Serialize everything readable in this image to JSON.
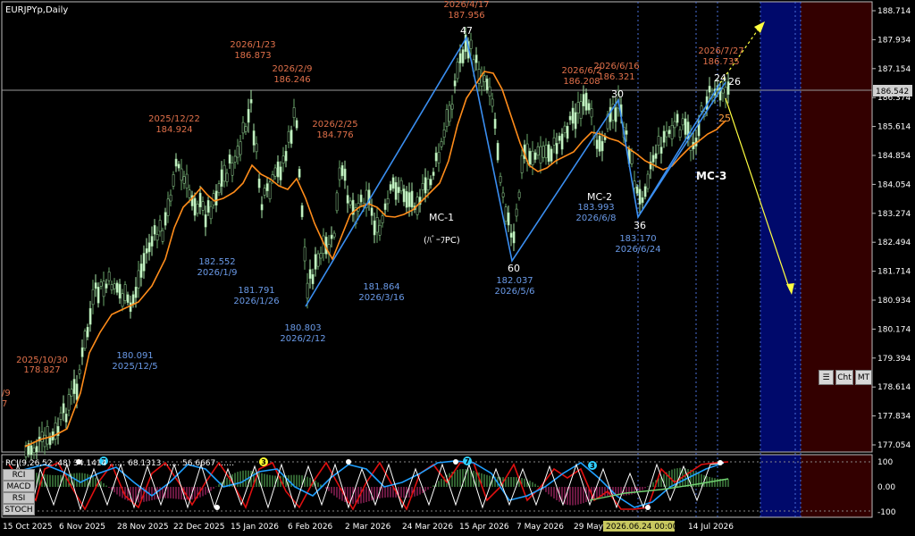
{
  "window": {
    "symbol_title": "EURJPYp,Daily",
    "current_price_label": "186.542",
    "indicator_header": "RCI(9,26,52 ,48) 34.1414 …… 68.1313 …… 56.6667 ……"
  },
  "price_axis": {
    "ticks": [
      "188.714",
      "187.934",
      "187.154",
      "186.374",
      "185.614",
      "184.854",
      "184.054",
      "183.274",
      "182.494",
      "181.714",
      "180.934",
      "180.174",
      "179.394",
      "178.614",
      "177.834",
      "177.054"
    ]
  },
  "sub_axis": {
    "ticks": [
      "100",
      "0.00",
      "-100"
    ]
  },
  "time_axis": {
    "ticks": [
      "15 Oct 2025",
      "6 Nov 2025",
      "28 Nov 2025",
      "22 Dec 2025",
      "15 Jan 2026",
      "6 Feb 2026",
      "2 Mar 2026",
      "24 Mar 2026",
      "15 Apr 2026",
      "7 May 2026",
      "29 May 2026",
      "14 Jul 2026"
    ],
    "highlight": "2026.06.24 00:00"
  },
  "annotations": {
    "orange": [
      {
        "date": "2025/10/30",
        "price": "178.827"
      },
      {
        "date": "2025/12/22",
        "price": "184.924"
      },
      {
        "date": "2026/1/23",
        "price": "186.873"
      },
      {
        "date": "2026/2/9",
        "price": "186.246"
      },
      {
        "date": "2026/2/25",
        "price": "184.776"
      },
      {
        "date": "2026/4/17",
        "price": "187.956"
      },
      {
        "date": "2026/6/2",
        "price": "186.208"
      },
      {
        "date": "2026/6/16",
        "price": "186.321"
      },
      {
        "date": "2026/7/27",
        "price": "186.735"
      }
    ],
    "blue": [
      {
        "price": "180.091",
        "date": "2025/12/5"
      },
      {
        "price": "182.552",
        "date": "2026/1/9"
      },
      {
        "price": "181.791",
        "date": "2026/1/26"
      },
      {
        "price": "180.803",
        "date": "2026/2/12"
      },
      {
        "price": "181.864",
        "date": "2026/3/16"
      },
      {
        "price": "182.037",
        "date": "2026/5/6"
      },
      {
        "price": "183.993",
        "date": "2026/6/8"
      },
      {
        "price": "183.170",
        "date": "2026/6/24"
      }
    ],
    "wave_numbers": [
      "47",
      "60",
      "30",
      "36",
      "24",
      "26",
      "25"
    ],
    "mc_labels": [
      "MC-1",
      "MC-2",
      "MC-3"
    ],
    "mc1_sub": "(ﾊﾞｰﾌPC)",
    "edge_left": "/9",
    "edge_left2": "7"
  },
  "indicator_buttons": [
    "RCI",
    "MACD",
    "RSI",
    "STOCH"
  ],
  "indicator_markers": [
    "7",
    "7",
    "3",
    "3"
  ],
  "toolbar_buttons": {
    "cht": "Cht",
    "mt": "MT"
  },
  "colors": {
    "bull_candle": "#a8e6a8",
    "orange_ma": "#ff8c1a",
    "wave_line": "#3a8ef0",
    "forecast_arrow": "#ffff40",
    "blue_zone": "#000a6e",
    "red_zone": "#3a0000"
  }
}
